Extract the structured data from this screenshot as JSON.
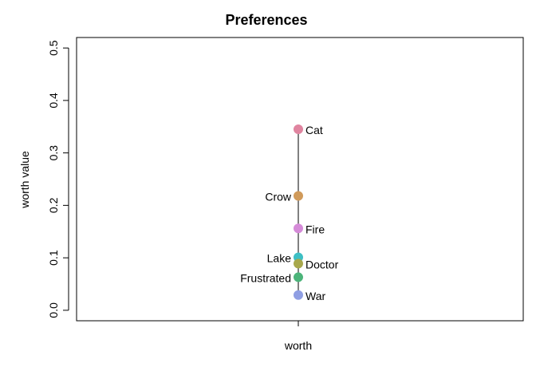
{
  "chart_data": {
    "type": "scatter",
    "title": "Preferences",
    "xlabel": "worth",
    "ylabel": "worth value",
    "ylim": [
      -0.02,
      0.52
    ],
    "yticks": [
      "0.0",
      "0.1",
      "0.2",
      "0.3",
      "0.4",
      "0.5"
    ],
    "ytick_values": [
      0.0,
      0.1,
      0.2,
      0.3,
      0.4,
      0.5
    ],
    "grid": false,
    "series": [
      {
        "name": "worth",
        "points": [
          {
            "label": "Cat",
            "value": 0.345,
            "color": "#E085A0",
            "label_side": "right"
          },
          {
            "label": "Crow",
            "value": 0.218,
            "color": "#D09A5A",
            "label_side": "left"
          },
          {
            "label": "Fire",
            "value": 0.156,
            "color": "#D58BD8",
            "label_side": "right"
          },
          {
            "label": "Lake",
            "value": 0.101,
            "color": "#3EBFC4",
            "label_side": "left"
          },
          {
            "label": "Doctor",
            "value": 0.089,
            "color": "#A8A84C",
            "label_side": "right"
          },
          {
            "label": "Frustrated",
            "value": 0.063,
            "color": "#4CB47A",
            "label_side": "left"
          },
          {
            "label": "War",
            "value": 0.029,
            "color": "#8F9EE3",
            "label_side": "right"
          }
        ]
      }
    ]
  }
}
